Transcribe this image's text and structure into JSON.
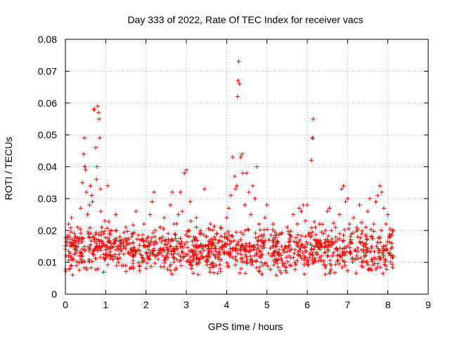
{
  "chart_data": {
    "type": "scatter",
    "title": "Day 333 of 2022, Rate Of TEC Index for receiver vacs",
    "xlabel": "GPS time / hours",
    "ylabel": "ROTI / TECUs",
    "xlim": [
      0,
      9
    ],
    "ylim": [
      0,
      0.08
    ],
    "xticks": [
      0,
      1,
      2,
      3,
      4,
      5,
      6,
      7,
      8,
      9
    ],
    "xtick_labels": [
      "0",
      "1",
      "2",
      "3",
      "4",
      "5",
      "6",
      "7",
      "8",
      "9"
    ],
    "yticks": [
      0,
      0.01,
      0.02,
      0.03,
      0.04,
      0.05,
      0.06,
      0.07,
      0.08
    ],
    "ytick_labels": [
      "0",
      "0.01",
      "0.02",
      "0.03",
      "0.04",
      "0.05",
      "0.06",
      "0.07",
      "0.08"
    ],
    "grid": true,
    "marker": "+",
    "series": [
      {
        "name": "ROTI",
        "color": "#ff0000",
        "points": [
          [
            0.02,
            0.012
          ],
          [
            0.05,
            0.018
          ],
          [
            0.08,
            0.022
          ],
          [
            0.1,
            0.008
          ],
          [
            0.12,
            0.015
          ],
          [
            0.15,
            0.024
          ],
          [
            0.18,
            0.006
          ],
          [
            0.2,
            0.011
          ],
          [
            0.22,
            0.019
          ],
          [
            0.25,
            0.014
          ],
          [
            0.28,
            0.009
          ],
          [
            0.3,
            0.021
          ],
          [
            0.33,
            0.016
          ],
          [
            0.35,
            0.012
          ],
          [
            0.38,
            0.027
          ],
          [
            0.4,
            0.01
          ],
          [
            0.42,
            0.035
          ],
          [
            0.45,
            0.044
          ],
          [
            0.47,
            0.049
          ],
          [
            0.48,
            0.04
          ],
          [
            0.5,
            0.039
          ],
          [
            0.52,
            0.032
          ],
          [
            0.55,
            0.025
          ],
          [
            0.58,
            0.018
          ],
          [
            0.6,
            0.028
          ],
          [
            0.62,
            0.034
          ],
          [
            0.65,
            0.031
          ],
          [
            0.67,
            0.029
          ],
          [
            0.7,
            0.058
          ],
          [
            0.72,
            0.058
          ],
          [
            0.75,
            0.046
          ],
          [
            0.77,
            0.036
          ],
          [
            0.78,
            0.04
          ],
          [
            0.8,
            0.059
          ],
          [
            0.82,
            0.057
          ],
          [
            0.84,
            0.055
          ],
          [
            0.85,
            0.049
          ],
          [
            0.87,
            0.033
          ],
          [
            0.88,
            0.026
          ],
          [
            0.9,
            0.021
          ],
          [
            0.92,
            0.016
          ],
          [
            0.95,
            0.019
          ],
          [
            0.98,
            0.023
          ],
          [
            1.0,
            0.014
          ],
          [
            1.05,
            0.034
          ],
          [
            1.1,
            0.012
          ],
          [
            1.15,
            0.02
          ],
          [
            1.2,
            0.016
          ],
          [
            1.25,
            0.025
          ],
          [
            1.3,
            0.011
          ],
          [
            1.35,
            0.018
          ],
          [
            1.4,
            0.009
          ],
          [
            1.45,
            0.015
          ],
          [
            1.5,
            0.021
          ],
          [
            1.55,
            0.013
          ],
          [
            1.6,
            0.008
          ],
          [
            1.65,
            0.019
          ],
          [
            1.7,
            0.012
          ],
          [
            1.75,
            0.026
          ],
          [
            1.8,
            0.014
          ],
          [
            1.85,
            0.017
          ],
          [
            1.9,
            0.01
          ],
          [
            1.95,
            0.022
          ],
          [
            2.0,
            0.013
          ],
          [
            2.05,
            0.018
          ],
          [
            2.1,
            0.025
          ],
          [
            2.15,
            0.029
          ],
          [
            2.2,
            0.032
          ],
          [
            2.25,
            0.016
          ],
          [
            2.3,
            0.011
          ],
          [
            2.35,
            0.021
          ],
          [
            2.4,
            0.014
          ],
          [
            2.45,
            0.024
          ],
          [
            2.5,
            0.012
          ],
          [
            2.55,
            0.019
          ],
          [
            2.6,
            0.028
          ],
          [
            2.65,
            0.032
          ],
          [
            2.7,
            0.022
          ],
          [
            2.75,
            0.015
          ],
          [
            2.8,
            0.025
          ],
          [
            2.85,
            0.032
          ],
          [
            2.9,
            0.026
          ],
          [
            2.95,
            0.038
          ],
          [
            3.0,
            0.039
          ],
          [
            3.05,
            0.02
          ],
          [
            3.1,
            0.029
          ],
          [
            3.15,
            0.013
          ],
          [
            3.2,
            0.017
          ],
          [
            3.25,
            0.024
          ],
          [
            3.3,
            0.011
          ],
          [
            3.35,
            0.02
          ],
          [
            3.4,
            0.015
          ],
          [
            3.45,
            0.033
          ],
          [
            3.5,
            0.018
          ],
          [
            3.55,
            0.012
          ],
          [
            3.6,
            0.022
          ],
          [
            3.65,
            0.016
          ],
          [
            3.7,
            0.009
          ],
          [
            3.75,
            0.019
          ],
          [
            3.8,
            0.013
          ],
          [
            3.85,
            0.021
          ],
          [
            3.9,
            0.015
          ],
          [
            3.95,
            0.018
          ],
          [
            4.0,
            0.024
          ],
          [
            4.05,
            0.027
          ],
          [
            4.1,
            0.031
          ],
          [
            4.15,
            0.043
          ],
          [
            4.2,
            0.037
          ],
          [
            4.22,
            0.033
          ],
          [
            4.25,
            0.034
          ],
          [
            4.27,
            0.062
          ],
          [
            4.28,
            0.067
          ],
          [
            4.3,
            0.073
          ],
          [
            4.32,
            0.066
          ],
          [
            4.35,
            0.043
          ],
          [
            4.38,
            0.044
          ],
          [
            4.4,
            0.038
          ],
          [
            4.45,
            0.028
          ],
          [
            4.5,
            0.038
          ],
          [
            4.55,
            0.032
          ],
          [
            4.6,
            0.025
          ],
          [
            4.65,
            0.034
          ],
          [
            4.7,
            0.03
          ],
          [
            4.75,
            0.04
          ],
          [
            4.8,
            0.022
          ],
          [
            4.85,
            0.015
          ],
          [
            4.9,
            0.018
          ],
          [
            4.95,
            0.024
          ],
          [
            5.0,
            0.028
          ],
          [
            5.05,
            0.017
          ],
          [
            5.1,
            0.012
          ],
          [
            5.15,
            0.022
          ],
          [
            5.2,
            0.01
          ],
          [
            5.25,
            0.016
          ],
          [
            5.3,
            0.013
          ],
          [
            5.35,
            0.019
          ],
          [
            5.4,
            0.009
          ],
          [
            5.45,
            0.015
          ],
          [
            5.5,
            0.021
          ],
          [
            5.55,
            0.012
          ],
          [
            5.6,
            0.018
          ],
          [
            5.65,
            0.025
          ],
          [
            5.7,
            0.014
          ],
          [
            5.75,
            0.022
          ],
          [
            5.8,
            0.027
          ],
          [
            5.85,
            0.026
          ],
          [
            5.9,
            0.028
          ],
          [
            5.95,
            0.023
          ],
          [
            6.0,
            0.028
          ],
          [
            6.05,
            0.019
          ],
          [
            6.1,
            0.042
          ],
          [
            6.12,
            0.049
          ],
          [
            6.14,
            0.049
          ],
          [
            6.15,
            0.055
          ],
          [
            6.2,
            0.021
          ],
          [
            6.25,
            0.016
          ],
          [
            6.3,
            0.022
          ],
          [
            6.35,
            0.012
          ],
          [
            6.4,
            0.019
          ],
          [
            6.45,
            0.015
          ],
          [
            6.5,
            0.026
          ],
          [
            6.55,
            0.027
          ],
          [
            6.6,
            0.02
          ],
          [
            6.65,
            0.013
          ],
          [
            6.7,
            0.021
          ],
          [
            6.75,
            0.017
          ],
          [
            6.8,
            0.025
          ],
          [
            6.85,
            0.033
          ],
          [
            6.9,
            0.034
          ],
          [
            6.95,
            0.029
          ],
          [
            7.0,
            0.03
          ],
          [
            7.05,
            0.022
          ],
          [
            7.1,
            0.016
          ],
          [
            7.15,
            0.024
          ],
          [
            7.2,
            0.011
          ],
          [
            7.25,
            0.018
          ],
          [
            7.3,
            0.028
          ],
          [
            7.35,
            0.019
          ],
          [
            7.4,
            0.014
          ],
          [
            7.45,
            0.021
          ],
          [
            7.5,
            0.026
          ],
          [
            7.55,
            0.03
          ],
          [
            7.6,
            0.015
          ],
          [
            7.65,
            0.022
          ],
          [
            7.7,
            0.029
          ],
          [
            7.75,
            0.031
          ],
          [
            7.8,
            0.034
          ],
          [
            7.85,
            0.032
          ],
          [
            7.9,
            0.027
          ],
          [
            7.95,
            0.022
          ],
          [
            8.0,
            0.025
          ],
          [
            8.05,
            0.018
          ],
          [
            8.1,
            0.016
          ],
          [
            8.13,
            0.012
          ]
        ]
      }
    ]
  }
}
